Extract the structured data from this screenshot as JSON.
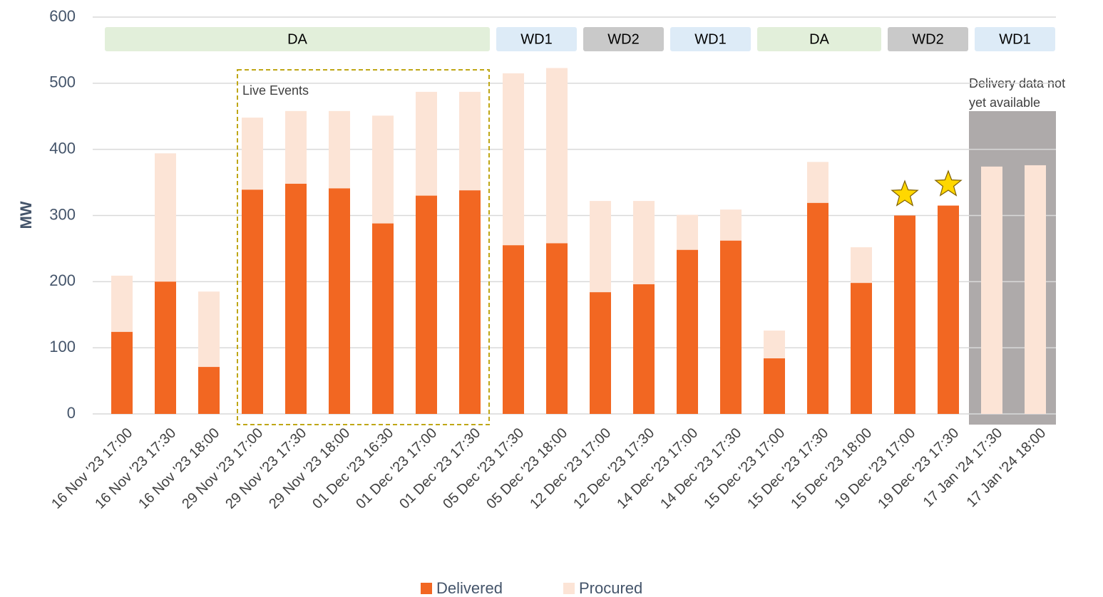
{
  "chart_data": {
    "type": "bar",
    "ylabel": "MW",
    "categories": [
      "16 Nov '23 17:00",
      "16 Nov '23 17:30",
      "16 Nov '23 18:00",
      "29 Nov '23 17:00",
      "29 Nov '23 17:30",
      "29 Nov '23 18:00",
      "01 Dec '23 16:30",
      "01 Dec '23 17:00",
      "01 Dec '23 17:30",
      "05 Dec '23 17:30",
      "05 Dec '23 18:00",
      "12 Dec '23 17:00",
      "12 Dec '23 17:30",
      "14 Dec '23 17:00",
      "14 Dec '23 17:30",
      "15 Dec '23 17:00",
      "15 Dec '23 17:30",
      "15 Dec '23 18:00",
      "19 Dec '23 17:00",
      "19 Dec '23 17:30",
      "17 Jan '24 17:30",
      "17 Jan '24 18:00"
    ],
    "series": [
      {
        "name": "Procured",
        "color": "#fce4d6",
        "values": [
          209,
          394,
          185,
          448,
          458,
          458,
          451,
          487,
          487,
          515,
          523,
          322,
          322,
          301,
          309,
          126,
          381,
          252,
          300,
          315,
          374,
          376
        ]
      },
      {
        "name": "Delivered",
        "color": "#f26722",
        "values": [
          124,
          200,
          71,
          339,
          348,
          341,
          288,
          330,
          338,
          255,
          258,
          184,
          196,
          248,
          262,
          84,
          319,
          198,
          300,
          315,
          null,
          null
        ]
      }
    ],
    "ylim": [
      0,
      600
    ],
    "yticks": [
      0,
      100,
      200,
      300,
      400,
      500,
      600
    ],
    "grid": true,
    "periods": [
      "DA",
      "WD1",
      "WD2",
      "WD1",
      "DA",
      "WD2",
      "WD1"
    ],
    "annotations": {
      "live_events": "Live Events",
      "no_data": [
        "Delivery data not",
        "yet available"
      ]
    }
  }
}
